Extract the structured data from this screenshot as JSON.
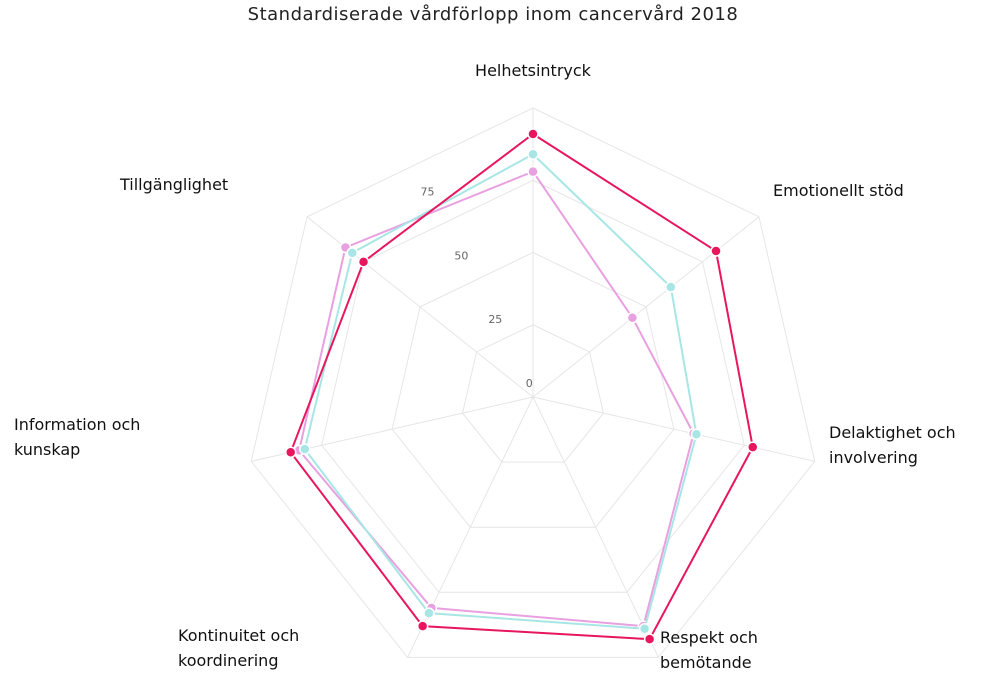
{
  "chart_data": {
    "type": "radar",
    "title": "Standardiserade vårdförlopp inom cancervård 2018",
    "categories": [
      "Helhetsintryck",
      "Emotionellt stöd",
      "Delaktighet och\ninvolvering",
      "Respekt och\nbemötande",
      "Kontinuitet och\nkoordinering",
      "Information och\nkunskap",
      "Tillgänglighet"
    ],
    "series": [
      {
        "color": "#e8175d",
        "values": [
          91,
          81,
          78,
          93,
          88,
          86,
          75
        ]
      },
      {
        "color": "#a8e6e6",
        "values": [
          84,
          61,
          58,
          89,
          83,
          81,
          80
        ]
      },
      {
        "color": "#e8a0e0",
        "values": [
          78,
          44,
          57,
          88,
          81,
          83,
          83
        ]
      }
    ],
    "rlim": [
      0,
      100
    ],
    "rticks": [
      0,
      25,
      50,
      75
    ],
    "grid": true
  }
}
